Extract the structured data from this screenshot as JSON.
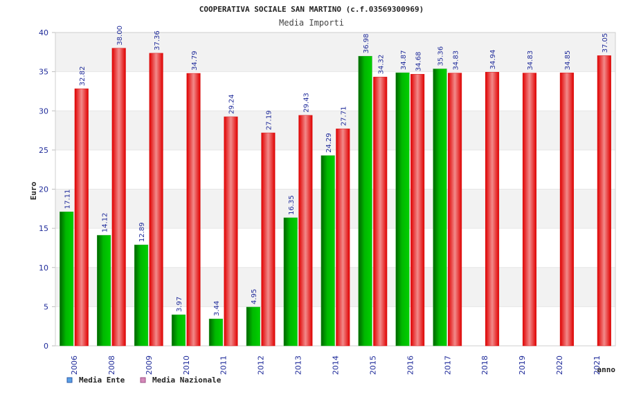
{
  "header": {
    "title": "COOPERATIVA SOCIALE SAN MARTINO (c.f.03569300969)",
    "subtitle": "Media Importi"
  },
  "chart_data": {
    "type": "bar",
    "title": "COOPERATIVA SOCIALE SAN MARTINO (c.f.03569300969)",
    "subtitle": "Media Importi",
    "xlabel": "anno",
    "ylabel": "Euro",
    "ylim": [
      0,
      40
    ],
    "yticks": [
      0,
      5,
      10,
      15,
      20,
      25,
      30,
      35,
      40
    ],
    "categories": [
      "2006",
      "2008",
      "2009",
      "2010",
      "2011",
      "2012",
      "2013",
      "2014",
      "2015",
      "2016",
      "2017",
      "2018",
      "2019",
      "2020",
      "2021"
    ],
    "series": [
      {
        "name": "Media Ente",
        "color": "#00a000",
        "values": [
          17.11,
          14.12,
          12.89,
          3.97,
          3.44,
          4.95,
          16.35,
          24.29,
          36.98,
          34.87,
          35.36,
          null,
          null,
          null,
          null
        ],
        "labels": [
          "17.11",
          "14.12",
          "12.89",
          "3.97",
          "3.44",
          "4.95",
          "16.35",
          "24.29",
          "36.98",
          "34.87",
          "35.36",
          "",
          "",
          "",
          ""
        ]
      },
      {
        "name": "Media Nazionale",
        "color": "#ee1c2e",
        "values": [
          32.82,
          38.0,
          37.36,
          34.79,
          29.24,
          27.19,
          29.43,
          27.71,
          34.32,
          34.68,
          34.83,
          34.94,
          34.83,
          34.85,
          37.05
        ],
        "labels": [
          "32.82",
          "38.00",
          "37.36",
          "34.79",
          "29.24",
          "27.19",
          "29.43",
          "27.71",
          "34.32",
          "34.68",
          "34.83",
          "34.94",
          "34.83",
          "34.85",
          "37.05"
        ]
      }
    ],
    "legend": [
      {
        "label": "Media Ente",
        "color": "#5aa0e6"
      },
      {
        "label": "Media Nazionale",
        "color": "#d58ab9"
      }
    ],
    "legend_position": "bottom-left",
    "grid": true
  }
}
